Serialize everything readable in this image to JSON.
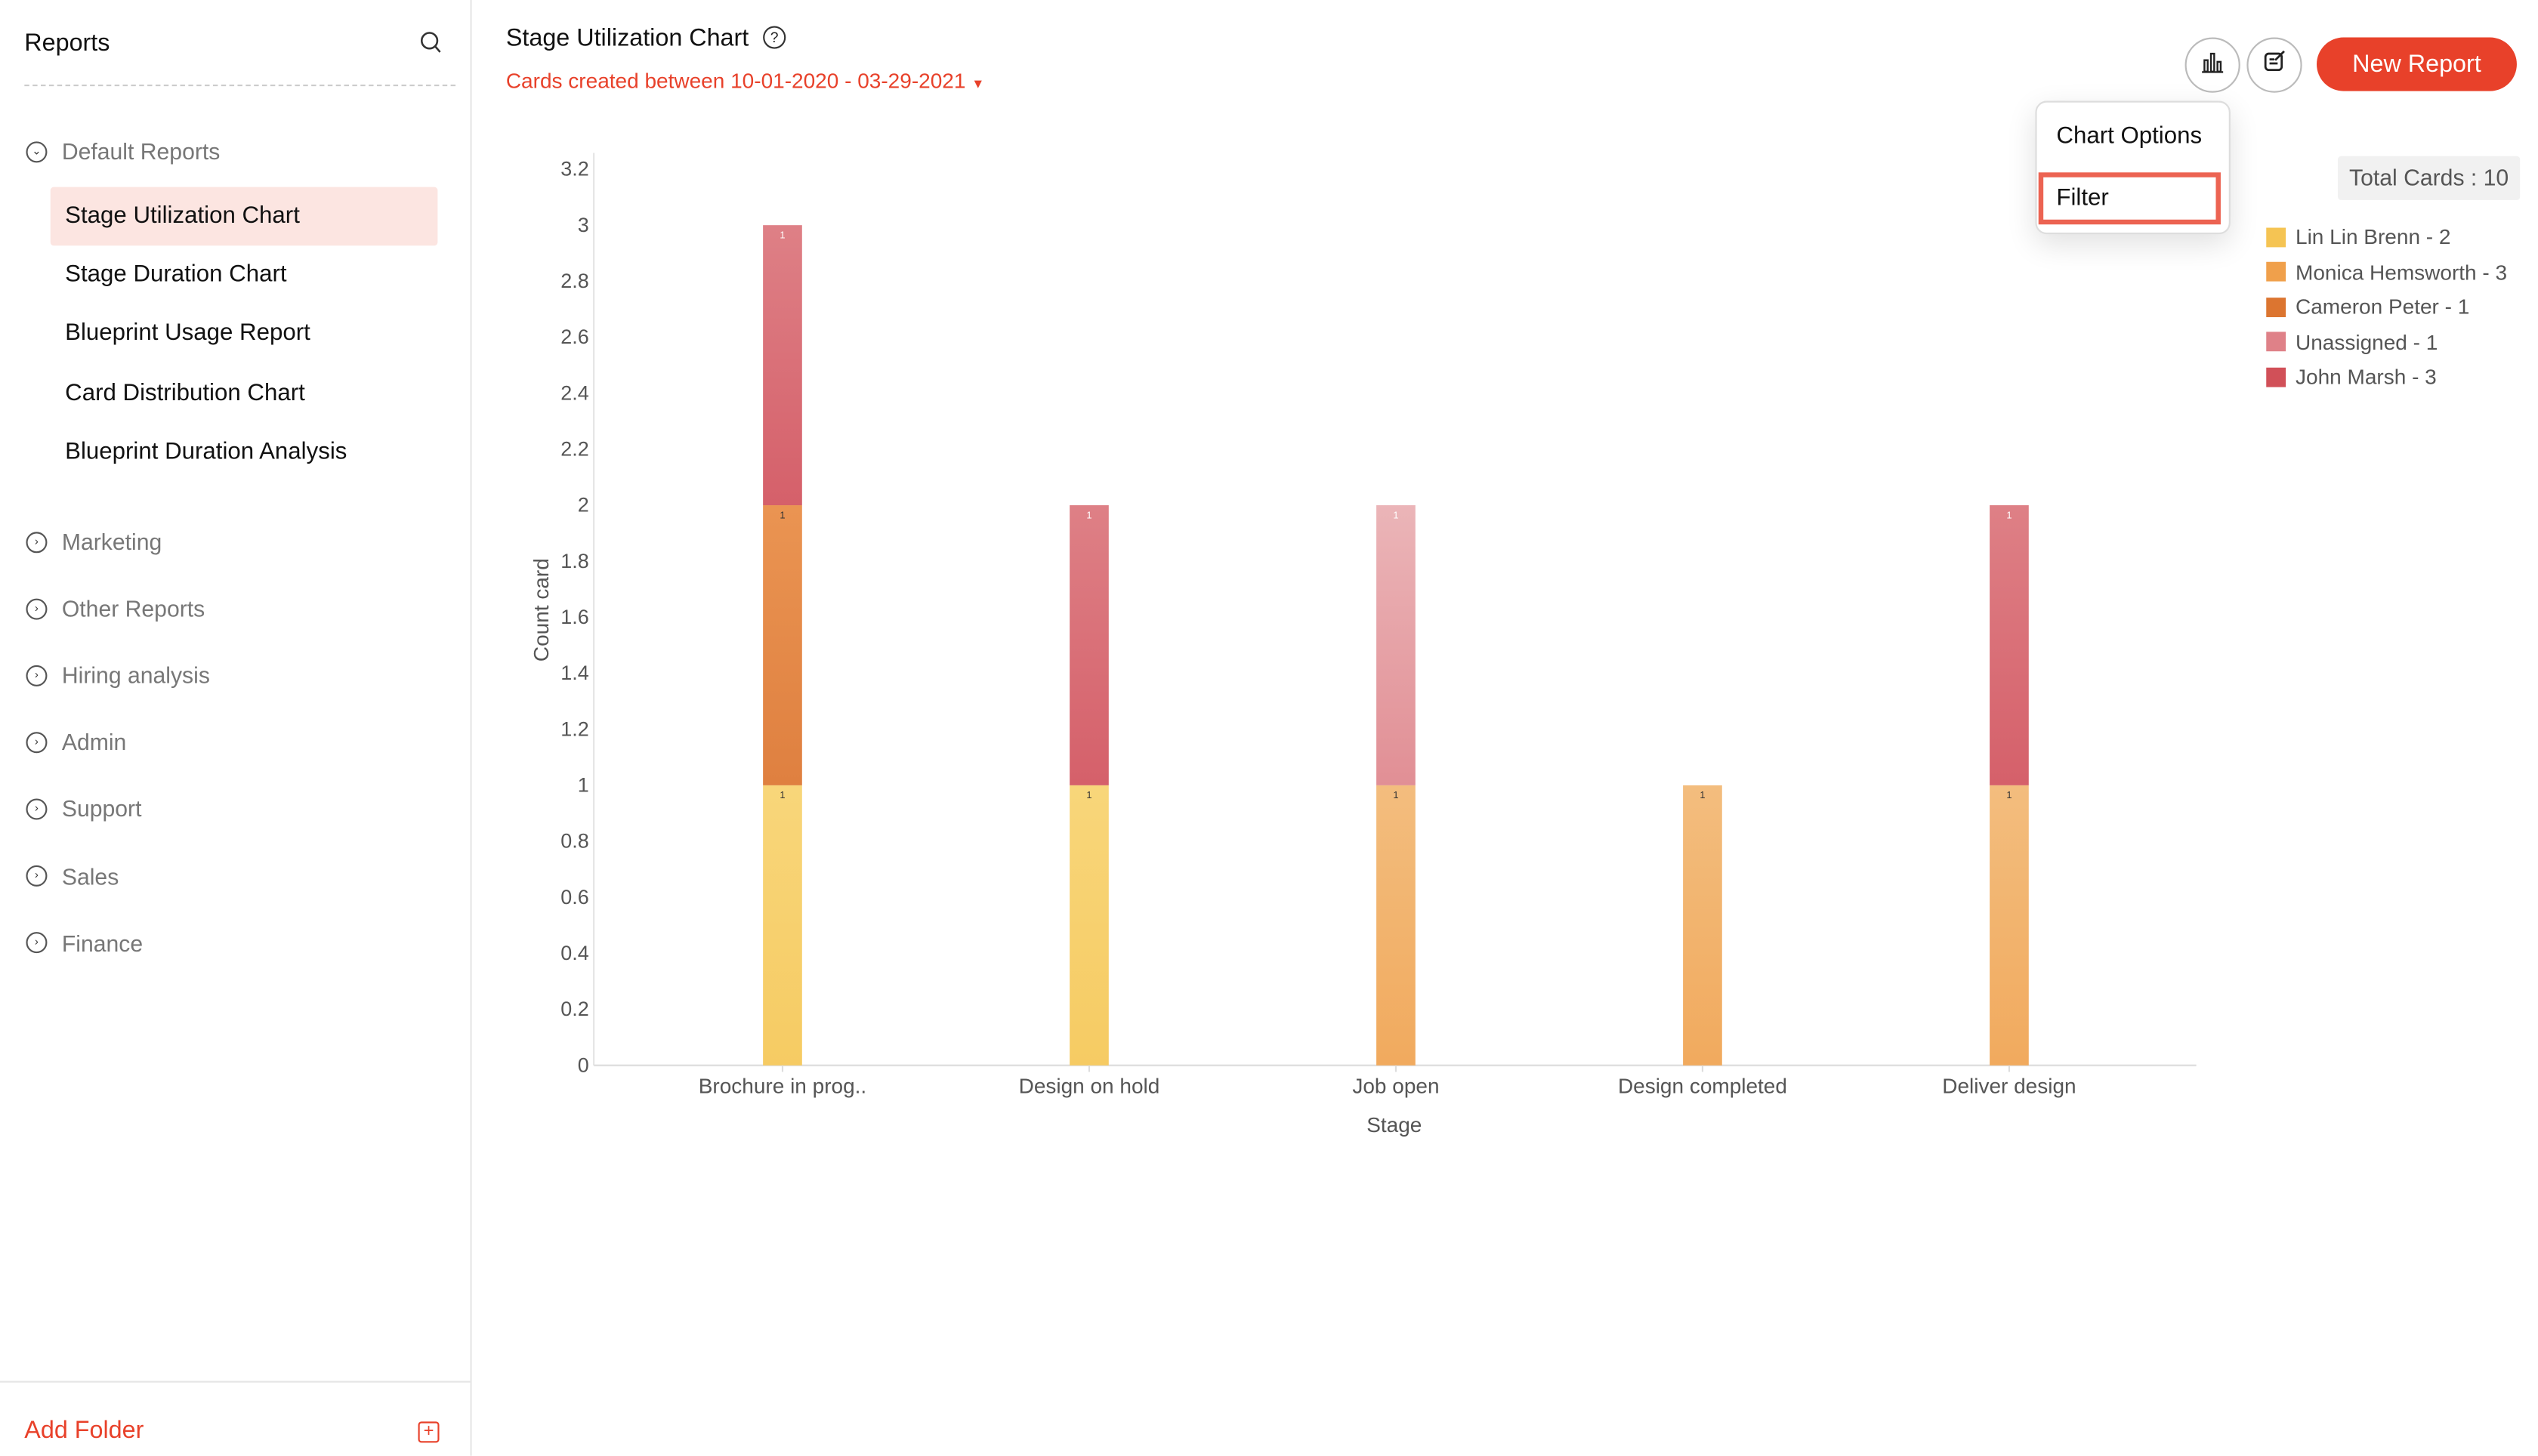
{
  "sidebar": {
    "title": "Reports",
    "default_folder": "Default Reports",
    "items": [
      {
        "label": "Stage Utilization Chart",
        "active": true
      },
      {
        "label": "Stage Duration Chart"
      },
      {
        "label": "Blueprint Usage Report"
      },
      {
        "label": "Card Distribution Chart"
      },
      {
        "label": "Blueprint Duration Analysis"
      }
    ],
    "folders": [
      "Marketing",
      "Other Reports",
      "Hiring analysis",
      "Admin",
      "Support",
      "Sales",
      "Finance"
    ],
    "add_folder": "Add Folder"
  },
  "header": {
    "title": "Stage Utilization Chart",
    "subtitle": "Cards created between 10-01-2020 - 03-29-2021",
    "new_report": "New Report",
    "accent": "#e8412a"
  },
  "menu": {
    "items": [
      "Chart Options",
      "Filter"
    ],
    "highlighted": "Filter"
  },
  "total_cards": "Total Cards : 10",
  "chart_data": {
    "type": "bar",
    "stacked": true,
    "xlabel": "Stage",
    "ylabel": "Count card",
    "ylim": [
      0,
      3.2
    ],
    "yticks": [
      "0",
      "0.2",
      "0.4",
      "0.6",
      "0.8",
      "1",
      "1.2",
      "1.4",
      "1.6",
      "1.8",
      "2",
      "2.2",
      "2.4",
      "2.6",
      "2.8",
      "3",
      "3.2"
    ],
    "categories": [
      "Brochure in prog..",
      "Design on hold",
      "Job open",
      "Design completed",
      "Deliver design"
    ],
    "series": [
      {
        "name": "Lin Lin Brenn - 2",
        "color": "#f5c453",
        "values": [
          1,
          1,
          0,
          0,
          0
        ]
      },
      {
        "name": "Monica Hemsworth - 3",
        "color": "#f0a04b",
        "values": [
          0,
          0,
          1,
          1,
          1
        ]
      },
      {
        "name": "Cameron Peter - 1",
        "color": "#dc7530",
        "values": [
          1,
          0,
          0,
          0,
          0
        ]
      },
      {
        "name": "Unassigned - 1",
        "color": "#df8188",
        "values": [
          0,
          0,
          1,
          0,
          0
        ]
      },
      {
        "name": "John Marsh - 3",
        "color": "#d15058",
        "values": [
          1,
          1,
          0,
          0,
          1
        ]
      }
    ],
    "data_label": "1"
  }
}
